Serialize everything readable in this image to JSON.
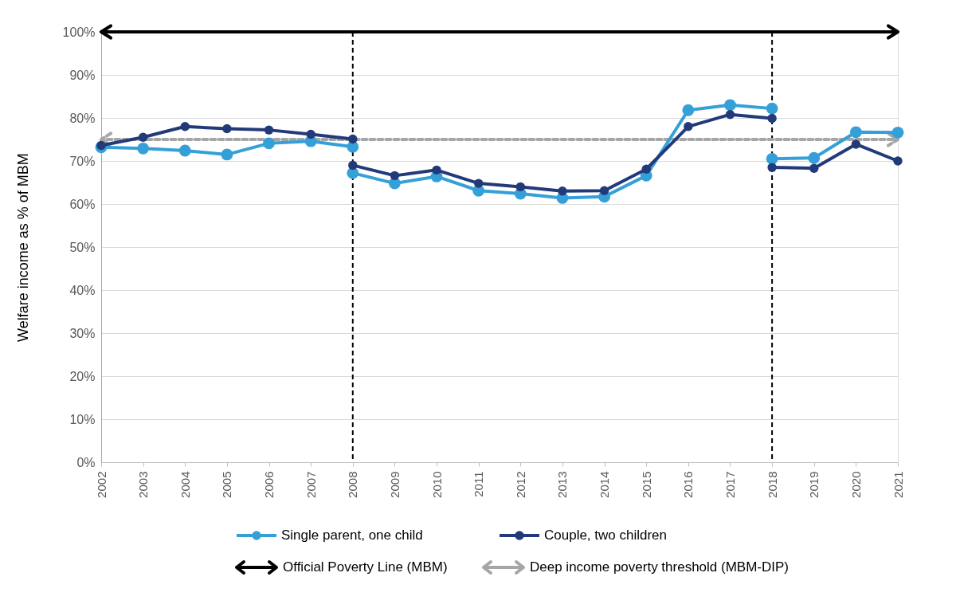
{
  "chart_data": {
    "type": "line",
    "ylabel": "Welfare income as % of MBM",
    "xlim": [
      2002,
      2021
    ],
    "xticks": [
      2002,
      2003,
      2004,
      2005,
      2006,
      2007,
      2008,
      2009,
      2010,
      2011,
      2012,
      2013,
      2014,
      2015,
      2016,
      2017,
      2018,
      2019,
      2020,
      2021
    ],
    "ylim": [
      0,
      100
    ],
    "yticks": [
      {
        "value": 0,
        "label": "0%"
      },
      {
        "value": 10,
        "label": "10%"
      },
      {
        "value": 20,
        "label": "20%"
      },
      {
        "value": 30,
        "label": "30%"
      },
      {
        "value": 40,
        "label": "40%"
      },
      {
        "value": 50,
        "label": "50%"
      },
      {
        "value": 60,
        "label": "60%"
      },
      {
        "value": 70,
        "label": "70%"
      },
      {
        "value": 80,
        "label": "80%"
      },
      {
        "value": 90,
        "label": "90%"
      },
      {
        "value": 100,
        "label": "100%"
      }
    ],
    "grid": "y",
    "legend": "bottom",
    "marker": "circle",
    "line_style": "solid",
    "series": [
      {
        "name": "Single parent, one child",
        "color": "#35a0d8",
        "x": [
          2002,
          2003,
          2004,
          2005,
          2006,
          2007,
          2008,
          null,
          2008,
          2009,
          2010,
          2011,
          2012,
          2013,
          2014,
          2015,
          2016,
          2017,
          2018,
          null,
          2018,
          2019,
          2020,
          2021
        ],
        "values": [
          73.2,
          72.9,
          72.4,
          71.5,
          74.1,
          74.6,
          73.3,
          null,
          67.2,
          64.8,
          66.4,
          63.1,
          62.4,
          61.4,
          61.7,
          66.6,
          81.8,
          83.0,
          82.2,
          null,
          70.5,
          70.7,
          76.7,
          76.6
        ]
      },
      {
        "name": "Couple, two children",
        "color": "#233a7a",
        "x": [
          2002,
          2003,
          2004,
          2005,
          2006,
          2007,
          2008,
          null,
          2008,
          2009,
          2010,
          2011,
          2012,
          2013,
          2014,
          2015,
          2016,
          2017,
          2018,
          null,
          2018,
          2019,
          2020,
          2021
        ],
        "values": [
          73.6,
          75.5,
          78.0,
          77.5,
          77.2,
          76.2,
          75.1,
          null,
          69.0,
          66.6,
          67.9,
          64.8,
          64.0,
          63.0,
          63.1,
          68.1,
          78.0,
          80.8,
          79.9,
          null,
          68.5,
          68.3,
          73.9,
          70.0
        ]
      }
    ],
    "ref_lines": [
      {
        "axis": "x",
        "value": 2008,
        "color": "#000000",
        "line_style": "dashed"
      },
      {
        "axis": "x",
        "value": 2018,
        "color": "#000000",
        "line_style": "dashed"
      },
      {
        "axis": "y",
        "value": 100,
        "label": "Official Poverty Line (MBM)",
        "color": "#000000",
        "line_style": "solid"
      },
      {
        "axis": "y",
        "value": 75,
        "label": "Deep income poverty threshold (MBM-DIP)",
        "color": "#a6a6a6",
        "line_style": "dashed"
      }
    ]
  }
}
